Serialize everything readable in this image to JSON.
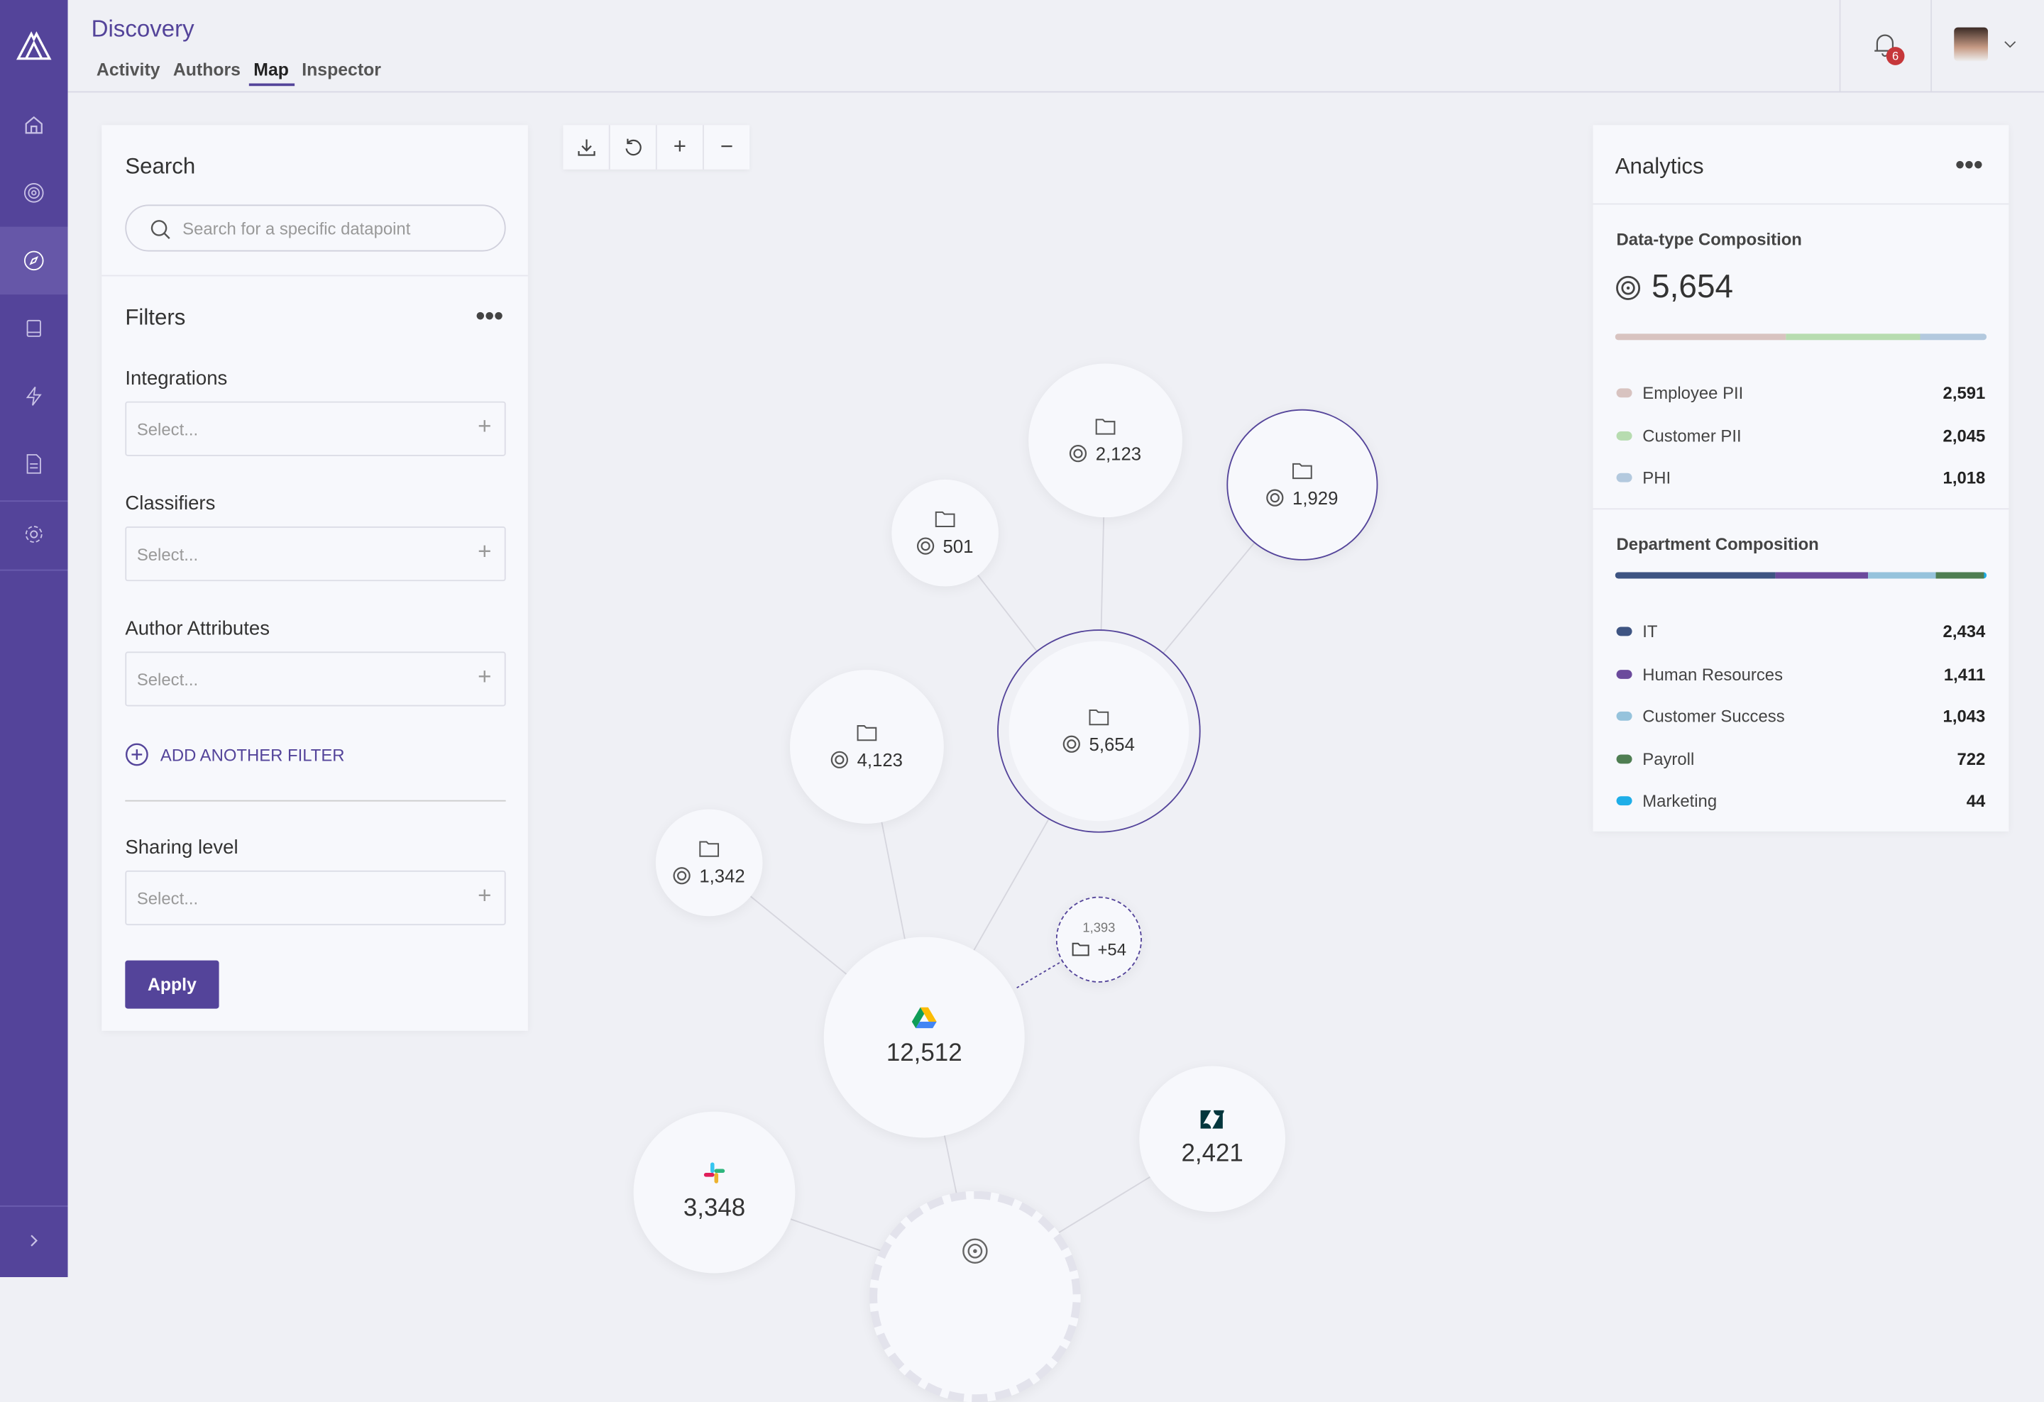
{
  "header": {
    "title": "Discovery",
    "tabs": [
      {
        "label": "Activity"
      },
      {
        "label": "Authors"
      },
      {
        "label": "Map",
        "active": true
      },
      {
        "label": "Inspector"
      }
    ],
    "notification_count": "6"
  },
  "sidebar": {
    "items": [
      "home-icon",
      "target-icon",
      "compass-icon",
      "book-icon",
      "bolt-icon",
      "document-icon",
      "gear-icon"
    ],
    "active": "compass-icon",
    "expand": "chevron-right-icon"
  },
  "search": {
    "title": "Search",
    "placeholder": "Search for a specific datapoint"
  },
  "filters": {
    "title": "Filters",
    "groups": [
      {
        "label": "Integrations",
        "placeholder": "Select..."
      },
      {
        "label": "Classifiers",
        "placeholder": "Select..."
      },
      {
        "label": "Author Attributes",
        "placeholder": "Select..."
      }
    ],
    "add_filter": "ADD ANOTHER FILTER",
    "sharing_label": "Sharing level",
    "sharing_placeholder": "Select...",
    "apply": "Apply"
  },
  "toolbar": [
    "download-icon",
    "reset-icon",
    "zoom-in-icon",
    "zoom-out-icon"
  ],
  "map": {
    "nodes": [
      {
        "id": "gdrive",
        "icon": "google-drive-icon",
        "value": "12,512"
      },
      {
        "id": "slack",
        "icon": "slack-icon",
        "value": "3,348"
      },
      {
        "id": "zendesk",
        "icon": "zendesk-icon",
        "value": "2,421"
      },
      {
        "id": "bottom",
        "icon": "datapoint-icon",
        "value": ""
      },
      {
        "id": "f5654",
        "icon": "folder-icon",
        "value": "5,654",
        "selected": true
      },
      {
        "id": "f4123",
        "icon": "folder-icon",
        "value": "4,123"
      },
      {
        "id": "f1342",
        "icon": "folder-icon",
        "value": "1,342"
      },
      {
        "id": "f501",
        "icon": "folder-icon",
        "value": "501"
      },
      {
        "id": "f2123",
        "icon": "folder-icon",
        "value": "2,123"
      },
      {
        "id": "f1929",
        "icon": "folder-icon",
        "value": "1,929",
        "highlighted": true
      },
      {
        "id": "more",
        "icon": "folder-icon",
        "value": "+54",
        "count": "1,393"
      }
    ]
  },
  "analytics": {
    "title": "Analytics",
    "datatype": {
      "title": "Data-type Composition",
      "total": "5,654",
      "items": [
        {
          "label": "Employee PII",
          "value": "2,591",
          "color": "#d8c3c0"
        },
        {
          "label": "Customer PII",
          "value": "2,045",
          "color": "#b7dcb0"
        },
        {
          "label": "PHI",
          "value": "1,018",
          "color": "#b3c9de"
        }
      ]
    },
    "department": {
      "title": "Department Composition",
      "items": [
        {
          "label": "IT",
          "value": "2,434",
          "color": "#3e5482"
        },
        {
          "label": "Human Resources",
          "value": "1,411",
          "color": "#6b4a9c"
        },
        {
          "label": "Customer Success",
          "value": "1,043",
          "color": "#96c3dc"
        },
        {
          "label": "Payroll",
          "value": "722",
          "color": "#4f7e52"
        },
        {
          "label": "Marketing",
          "value": "44",
          "color": "#1eaee8"
        }
      ]
    }
  }
}
